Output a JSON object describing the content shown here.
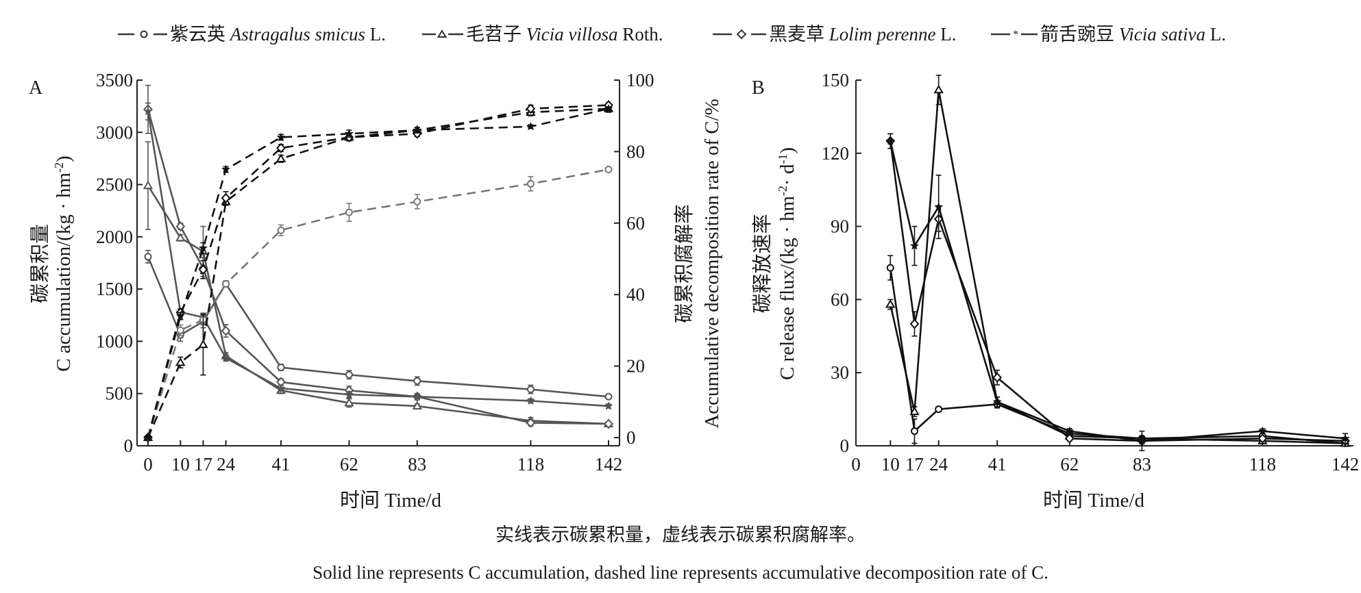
{
  "legend": [
    {
      "marker": "circle",
      "name_cn": "紫云英",
      "name_latin": "Astragalus smicus",
      "authority": "L."
    },
    {
      "marker": "triangle",
      "name_cn": "毛苕子",
      "name_latin": "Vicia villosa",
      "authority": "Roth."
    },
    {
      "marker": "diamond",
      "name_cn": "黑麦草",
      "name_latin": "Lolim perenne",
      "authority": "L."
    },
    {
      "marker": "star",
      "name_cn": "箭舌豌豆",
      "name_latin": "Vicia sativa",
      "authority": "L."
    }
  ],
  "captions": {
    "cn": "实线表示碳累积量，虚线表示碳累积腐解率。",
    "en": "Solid line represents C accumulation, dashed line represents accumulative decomposition rate of C."
  },
  "colors": {
    "accumulation": "#555555",
    "decomposition": "#111111",
    "astragalus_decomposition": "#777777",
    "flux": "#111111"
  },
  "chart_data": [
    {
      "type": "line",
      "panel": "A",
      "xlabel": "时间 Time/d",
      "ylabel_cn": "碳累积量",
      "ylabel_en": "C accumulation/(kg · hm",
      "ylabel_sup": "-2",
      "ylabel_end": ")",
      "y2label_cn": "碳累积腐解率",
      "y2label_en": "Accumulative decomposition rate of C/%",
      "x": [
        0,
        10,
        17,
        24,
        41,
        62,
        83,
        118,
        142
      ],
      "xlim": [
        0,
        142
      ],
      "ylim": [
        0,
        3500
      ],
      "yticks": [
        0,
        500,
        1000,
        1500,
        2000,
        2500,
        3000,
        3500
      ],
      "y2lim": [
        0,
        100
      ],
      "y2ticks": [
        0,
        20,
        40,
        60,
        80,
        100
      ],
      "series_accumulation": [
        {
          "name": "紫云英 Astragalus smicus L.",
          "marker": "circle",
          "values": [
            1810,
            1060,
            1190,
            1550,
            750,
            680,
            620,
            540,
            470
          ],
          "errors": [
            60,
            60,
            60,
            30,
            30,
            40,
            40,
            40,
            20
          ]
        },
        {
          "name": "毛苕子 Vicia villosa Roth.",
          "marker": "triangle",
          "values": [
            2490,
            1990,
            1860,
            860,
            530,
            410,
            380,
            240,
            210
          ],
          "errors": [
            420,
            30,
            240,
            30,
            30,
            40,
            20,
            30,
            20
          ]
        },
        {
          "name": "黑麦草 Lolim perenne L.",
          "marker": "diamond",
          "values": [
            3220,
            2100,
            1700,
            1100,
            610,
            530,
            470,
            220,
            210
          ],
          "errors": [
            230,
            30,
            100,
            60,
            30,
            40,
            30,
            30,
            20
          ]
        },
        {
          "name": "箭舌豌豆 Vicia sativa L.",
          "marker": "star",
          "values": [
            3200,
            1280,
            1230,
            840,
            550,
            490,
            470,
            430,
            380
          ],
          "errors": [
            80,
            30,
            40,
            30,
            30,
            30,
            20,
            20,
            20
          ]
        }
      ],
      "series_decomposition": [
        {
          "name": "紫云英 Astragalus smicus L.",
          "marker": "circle",
          "values": [
            0,
            30,
            33,
            43,
            58,
            63,
            66,
            71,
            75
          ],
          "errors": [
            0.5,
            1.5,
            1.5,
            0.8,
            1.5,
            2.5,
            2,
            2,
            0.5
          ]
        },
        {
          "name": "毛苕子 Vicia villosa Roth.",
          "marker": "triangle",
          "values": [
            0,
            21,
            26,
            66,
            78,
            84,
            86,
            91,
            92
          ],
          "errors": [
            0.5,
            1.5,
            8.5,
            1,
            1,
            1,
            0.8,
            1,
            1
          ]
        },
        {
          "name": "黑麦草 Lolim perenne L.",
          "marker": "diamond",
          "values": [
            0,
            35,
            47,
            67,
            81,
            84,
            85,
            92,
            93
          ],
          "errors": [
            0.5,
            1,
            2.5,
            1.8,
            1,
            1,
            0.8,
            1,
            0.5
          ]
        },
        {
          "name": "箭舌豌豆 Vicia sativa L.",
          "marker": "star",
          "values": [
            0,
            34,
            53,
            75,
            84,
            85,
            86,
            87,
            92
          ],
          "errors": [
            0.5,
            1,
            1.5,
            0.8,
            0.8,
            1,
            0.8,
            0.5,
            0.5
          ]
        }
      ]
    },
    {
      "type": "line",
      "panel": "B",
      "xlabel": "时间 Time/d",
      "ylabel_cn": "碳释放速率",
      "ylabel_en": "C release flux/(kg · hm",
      "ylabel_sup1": "-2",
      "ylabel_mid": "· d",
      "ylabel_sup2": "-1",
      "ylabel_end": ")",
      "x": [
        10,
        17,
        24,
        41,
        62,
        83,
        118,
        142
      ],
      "xticks": [
        0,
        10,
        17,
        24,
        41,
        62,
        83,
        118,
        142
      ],
      "xlim": [
        0,
        142
      ],
      "ylim": [
        0,
        150
      ],
      "yticks": [
        0,
        30,
        60,
        90,
        120,
        150
      ],
      "series": [
        {
          "name": "紫云英 Astragalus smicus L.",
          "marker": "circle",
          "values": [
            73,
            6,
            15,
            17,
            5,
            3,
            4,
            1
          ],
          "errors": [
            5,
            5,
            1,
            1.5,
            1,
            1,
            1,
            0.5
          ]
        },
        {
          "name": "毛苕子 Vicia villosa Roth.",
          "marker": "triangle",
          "values": [
            58,
            14,
            146,
            18,
            4,
            3,
            2,
            1
          ],
          "errors": [
            2,
            2,
            6,
            2,
            1,
            1,
            0.5,
            0.5
          ]
        },
        {
          "name": "黑麦草 Lolim perenne L.",
          "marker": "diamond",
          "values": [
            125,
            50,
            93,
            28,
            3,
            2,
            3,
            2
          ],
          "errors": [
            3,
            5,
            5,
            3,
            1,
            1,
            0.5,
            1
          ]
        },
        {
          "name": "箭舌豌豆 Vicia sativa L.",
          "marker": "star",
          "values": [
            125,
            82,
            98,
            18,
            6,
            2,
            6,
            3
          ],
          "errors": [
            3,
            8,
            13,
            2,
            1,
            4,
            1,
            2
          ]
        }
      ]
    }
  ]
}
